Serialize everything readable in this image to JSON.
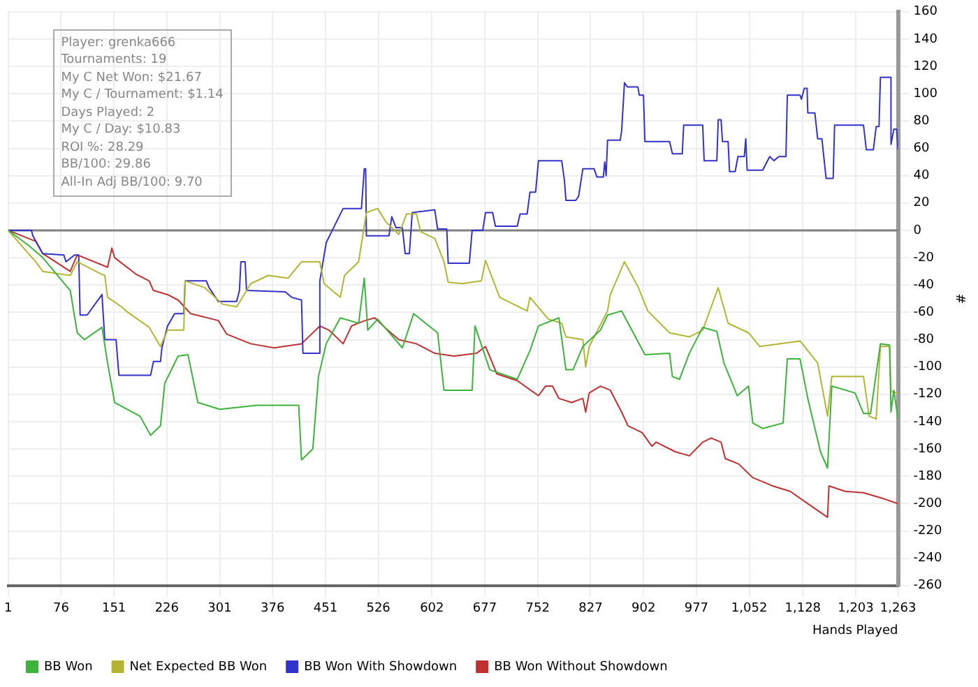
{
  "chart_data": {
    "type": "line",
    "xlabel": "Hands Played",
    "ylabel": "#",
    "xlim": [
      1,
      1263
    ],
    "xticks": [
      1,
      76,
      151,
      226,
      301,
      376,
      451,
      526,
      602,
      677,
      752,
      827,
      902,
      977,
      {
        "value": 1052,
        "label": "1,052"
      },
      {
        "value": 1128,
        "label": "1,128"
      },
      {
        "value": 1203,
        "label": "1,203"
      },
      {
        "value": 1263,
        "label": "1,263"
      }
    ],
    "ylim": [
      -260,
      160
    ],
    "yticks": [
      -260,
      -240,
      -220,
      -200,
      -180,
      -160,
      -140,
      -120,
      -100,
      -80,
      -60,
      -40,
      -20,
      0,
      20,
      40,
      60,
      80,
      100,
      120,
      140,
      160
    ],
    "grid": true,
    "legend": "bottom",
    "marker": "none",
    "line_style": "solid",
    "ref_lines": [
      {
        "axis": "y",
        "value": 0,
        "color": "#808080"
      }
    ],
    "annotations": [
      "Player: grenka666",
      "Tournaments: 19",
      "My C Net Won: $21.67",
      "My C / Tournament: $1.14",
      "Days Played: 2",
      "My C / Day: $10.83",
      "ROI %: 28.29",
      "BB/100: 29.86",
      "All-In Adj BB/100: 9.70"
    ],
    "series": [
      {
        "name": "BB Won",
        "color": "#3cb43c",
        "x": [
          1,
          30,
          50,
          89,
          99,
          109,
          134,
          142,
          152,
          188,
          203,
          217,
          223,
          242,
          256,
          270,
          301,
          354,
          413,
          417,
          433,
          441,
          452,
          472,
          498,
          506,
          511,
          525,
          560,
          576,
          610,
          619,
          659,
          663,
          684,
          723,
          741,
          753,
          782,
          792,
          802,
          816,
          841,
          851,
          871,
          904,
          939,
          943,
          953,
          967,
          986,
          1006,
          1016,
          1035,
          1051,
          1057,
          1071,
          1100,
          1106,
          1124,
          1135,
          1153,
          1163,
          1169,
          1202,
          1214,
          1224,
          1238,
          1251,
          1253,
          1257,
          1263
        ],
        "values": [
          0,
          -11,
          -20,
          -44,
          -75,
          -80,
          -71,
          -97,
          -126,
          -136,
          -150,
          -143,
          -112,
          -92,
          -91,
          -126,
          -131,
          -128,
          -128,
          -168,
          -160,
          -107,
          -83,
          -64,
          -68,
          -35,
          -73,
          -65,
          -86,
          -61,
          -75,
          -117,
          -117,
          -70,
          -102,
          -109,
          -88,
          -70,
          -64,
          -102,
          -102,
          -85,
          -73,
          -62,
          -59,
          -91,
          -90,
          -107,
          -109,
          -90,
          -71,
          -74,
          -97,
          -121,
          -114,
          -141,
          -145,
          -141,
          -94,
          -94,
          -123,
          -162,
          -174,
          -114,
          -119,
          -134,
          -134,
          -83,
          -84,
          -133,
          -117,
          -138
        ]
      },
      {
        "name": "Net Expected BB Won",
        "color": "#b5b535",
        "x": [
          1,
          40,
          50,
          89,
          99,
          133,
          138,
          142,
          162,
          168,
          201,
          217,
          227,
          250,
          252,
          280,
          305,
          325,
          345,
          370,
          398,
          417,
          443,
          449,
          472,
          478,
          498,
          509,
          525,
          537,
          555,
          566,
          580,
          586,
          606,
          619,
          625,
          645,
          672,
          678,
          698,
          737,
          741,
          767,
          786,
          792,
          816,
          820,
          825,
          851,
          855,
          875,
          894,
          908,
          939,
          967,
          986,
          1008,
          1022,
          1051,
          1067,
          1124,
          1149,
          1163,
          1169,
          1214,
          1222,
          1232,
          1238,
          1251,
          1253,
          1263
        ],
        "values": [
          0,
          -23,
          -30,
          -33,
          -23,
          -32,
          -33,
          -49,
          -56,
          -59,
          -71,
          -85,
          -73,
          -73,
          -37,
          -42,
          -54,
          -56,
          -39,
          -33,
          -35,
          -23,
          -23,
          -39,
          -49,
          -33,
          -23,
          13,
          16,
          6,
          -3,
          12,
          12,
          -1,
          -6,
          -23,
          -38,
          -39,
          -37,
          -22,
          -49,
          -59,
          -49,
          -65,
          -68,
          -78,
          -80,
          -100,
          -85,
          -59,
          -47,
          -23,
          -41,
          -59,
          -75,
          -78,
          -73,
          -42,
          -68,
          -75,
          -85,
          -81,
          -97,
          -136,
          -107,
          -107,
          -136,
          -138,
          -85,
          -85,
          -118,
          -119
        ]
      },
      {
        "name": "BB Won With Showdown",
        "color": "#3333cc",
        "x": [
          1,
          34,
          36,
          50,
          80,
          83,
          95,
          101,
          103,
          113,
          134,
          138,
          154,
          158,
          203,
          207,
          217,
          219,
          227,
          237,
          250,
          252,
          282,
          286,
          299,
          325,
          329,
          331,
          337,
          339,
          394,
          403,
          417,
          419,
          443,
          443,
          452,
          476,
          502,
          506,
          508,
          509,
          541,
          545,
          551,
          560,
          564,
          570,
          574,
          606,
          610,
          623,
          625,
          655,
          659,
          674,
          678,
          688,
          692,
          723,
          727,
          737,
          741,
          749,
          753,
          786,
          790,
          792,
          806,
          810,
          816,
          832,
          836,
          845,
          847,
          849,
          851,
          869,
          871,
          875,
          879,
          894,
          896,
          902,
          904,
          939,
          943,
          957,
          959,
          986,
          988,
          1006,
          1008,
          1012,
          1014,
          1022,
          1024,
          1032,
          1036,
          1045,
          1047,
          1049,
          1071,
          1075,
          1081,
          1087,
          1094,
          1104,
          1106,
          1124,
          1126,
          1130,
          1134,
          1135,
          1145,
          1149,
          1155,
          1161,
          1171,
          1173,
          1214,
          1218,
          1228,
          1232,
          1236,
          1238,
          1253,
          1253,
          1257,
          1261,
          1263
        ],
        "values": [
          0,
          0,
          -4,
          -17,
          -18,
          -23,
          -18,
          -18,
          -62,
          -62,
          -47,
          -80,
          -80,
          -106,
          -106,
          -96,
          -96,
          -86,
          -70,
          -61,
          -61,
          -37,
          -37,
          -42,
          -52,
          -52,
          -44,
          -23,
          -23,
          -44,
          -45,
          -49,
          -51,
          -90,
          -90,
          -37,
          -9,
          16,
          16,
          45,
          45,
          -4,
          -4,
          10,
          2,
          2,
          -17,
          -17,
          13,
          15,
          1,
          1,
          -24,
          -24,
          0,
          0,
          13,
          13,
          3,
          3,
          12,
          12,
          28,
          28,
          51,
          51,
          36,
          22,
          22,
          25,
          45,
          45,
          39,
          39,
          50,
          40,
          66,
          66,
          73,
          108,
          105,
          105,
          99,
          99,
          65,
          65,
          56,
          56,
          77,
          77,
          51,
          51,
          81,
          81,
          65,
          65,
          43,
          43,
          54,
          54,
          67,
          44,
          44,
          48,
          54,
          51,
          54,
          54,
          99,
          99,
          96,
          104,
          104,
          86,
          86,
          67,
          67,
          38,
          38,
          77,
          77,
          59,
          59,
          76,
          76,
          112,
          112,
          63,
          74,
          74,
          59
        ]
      },
      {
        "name": "BB Won Without Showdown",
        "color": "#c03030",
        "x": [
          1,
          40,
          50,
          89,
          99,
          142,
          148,
          152,
          182,
          201,
          207,
          227,
          242,
          260,
          299,
          311,
          345,
          378,
          417,
          443,
          456,
          476,
          488,
          507,
          521,
          535,
          555,
          580,
          606,
          633,
          665,
          678,
          694,
          723,
          753,
          763,
          773,
          782,
          800,
          816,
          820,
          825,
          841,
          855,
          871,
          880,
          900,
          914,
          920,
          947,
          967,
          986,
          998,
          1012,
          1018,
          1037,
          1057,
          1085,
          1110,
          1135,
          1163,
          1165,
          1188,
          1214,
          1240,
          1263
        ],
        "values": [
          0,
          -8,
          -17,
          -30,
          -18,
          -27,
          -13,
          -20,
          -32,
          -37,
          -44,
          -47,
          -51,
          -61,
          -66,
          -76,
          -83,
          -86,
          -83,
          -70,
          -73,
          -83,
          -70,
          -66,
          -64,
          -71,
          -80,
          -83,
          -90,
          -92,
          -90,
          -85,
          -105,
          -110,
          -121,
          -114,
          -114,
          -123,
          -126,
          -123,
          -133,
          -119,
          -114,
          -117,
          -133,
          -143,
          -148,
          -158,
          -155,
          -162,
          -165,
          -155,
          -152,
          -155,
          -167,
          -171,
          -181,
          -187,
          -191,
          -200,
          -210,
          -187,
          -191,
          -192,
          -196,
          -200
        ]
      }
    ]
  }
}
